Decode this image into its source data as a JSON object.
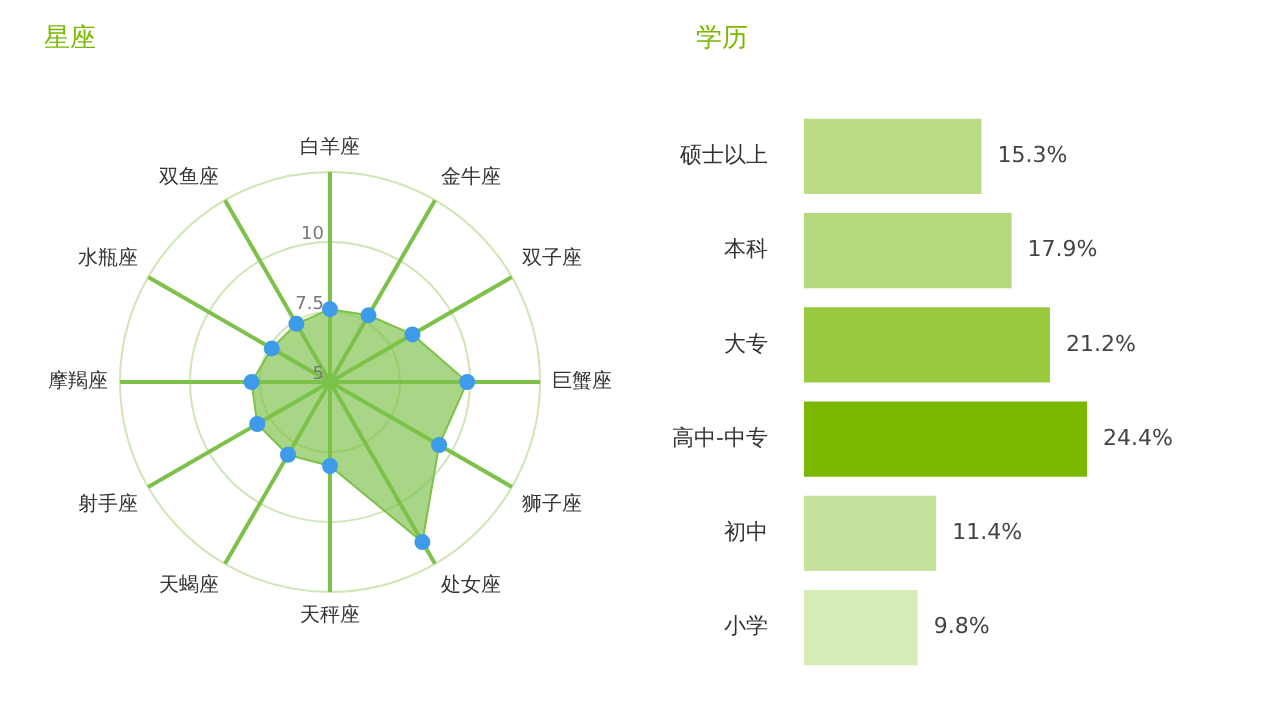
{
  "chart_data": [
    {
      "type": "radar",
      "title": "星座",
      "categories": [
        "白羊座",
        "金牛座",
        "双子座",
        "巨蟹座",
        "狮子座",
        "处女座",
        "天秤座",
        "天蝎座",
        "射手座",
        "摩羯座",
        "水瓶座",
        "双鱼座"
      ],
      "series": [
        {
          "color": "#7dc14a",
          "values": [
            7.6,
            7.75,
            8.4,
            9.9,
            9.5,
            11.6,
            8,
            8,
            8,
            7.8,
            7.4,
            7.4
          ]
        }
      ],
      "ylim": [
        5,
        12.5
      ],
      "yticks": [
        5,
        7.5,
        10
      ],
      "grid": true,
      "legend": false,
      "marker": "circle"
    },
    {
      "type": "bar",
      "title": "学历",
      "orientation": "horizontal",
      "categories": [
        "硕士以上",
        "本科",
        "大专",
        "高中-中专",
        "初中",
        "小学"
      ],
      "values": [
        15.3,
        17.9,
        21.2,
        24.4,
        11.4,
        9.8
      ],
      "colors": [
        "#b9dc85",
        "#b4d97c",
        "#99c93e",
        "#7ab800",
        "#c5e19c",
        "#d6ebb6"
      ],
      "value_labels": [
        "15.3%",
        "17.9%",
        "21.2%",
        "24.4%",
        "11.4%",
        "9.8%"
      ],
      "grid": false,
      "legend": false,
      "tick_labels": "y"
    }
  ]
}
